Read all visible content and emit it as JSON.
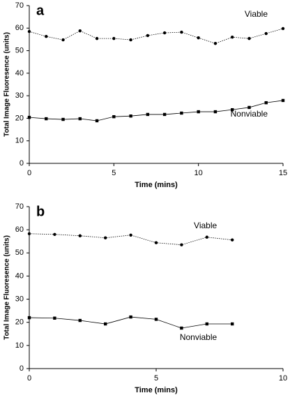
{
  "chart_data": [
    {
      "type": "line",
      "panel_label": "a",
      "xlabel": "Time (mins)",
      "ylabel": "Total Image Fluoresence (units)",
      "x": [
        0,
        1,
        2,
        3,
        4,
        5,
        6,
        7,
        8,
        9,
        10,
        11,
        12,
        13,
        14,
        15
      ],
      "xlim": [
        0,
        15
      ],
      "ylim": [
        0,
        70
      ],
      "xticks": [
        0,
        5,
        10,
        15
      ],
      "yticks": [
        0,
        10,
        20,
        30,
        40,
        50,
        60,
        70
      ],
      "series": [
        {
          "name": "Viable",
          "color": "#000000",
          "marker": "circle",
          "dash": "dotted",
          "values": [
            58.5,
            56.3,
            54.8,
            58.8,
            55.4,
            55.4,
            54.8,
            56.7,
            57.9,
            58.2,
            55.7,
            53.2,
            56,
            55.4,
            57.6,
            59.8
          ]
        },
        {
          "name": "Nonviable",
          "color": "#000000",
          "marker": "square",
          "dash": "solid",
          "values": [
            20.4,
            19.8,
            19.5,
            19.8,
            18.9,
            20.7,
            21,
            21.7,
            21.7,
            22.3,
            22.9,
            22.9,
            23.8,
            24.8,
            26.9,
            27.9
          ]
        }
      ]
    },
    {
      "type": "line",
      "panel_label": "b",
      "xlabel": "Time (mins)",
      "ylabel": "Total Image Fluoresence (units)",
      "x": [
        0,
        1,
        2,
        3,
        4,
        5,
        6,
        7,
        8
      ],
      "xlim": [
        0,
        10
      ],
      "ylim": [
        0,
        70
      ],
      "xticks": [
        0,
        5,
        10
      ],
      "yticks": [
        0,
        10,
        20,
        30,
        40,
        50,
        60,
        70
      ],
      "series": [
        {
          "name": "Viable",
          "color": "#000000",
          "marker": "circle",
          "dash": "dotted",
          "values": [
            58.3,
            58,
            57.4,
            56.5,
            57.7,
            54.4,
            53.5,
            56.8,
            55.6
          ]
        },
        {
          "name": "Nonviable",
          "color": "#000000",
          "marker": "square",
          "dash": "solid",
          "values": [
            22,
            21.8,
            20.8,
            19.3,
            22.3,
            21.3,
            17.5,
            19.3,
            19.3
          ]
        }
      ]
    }
  ]
}
